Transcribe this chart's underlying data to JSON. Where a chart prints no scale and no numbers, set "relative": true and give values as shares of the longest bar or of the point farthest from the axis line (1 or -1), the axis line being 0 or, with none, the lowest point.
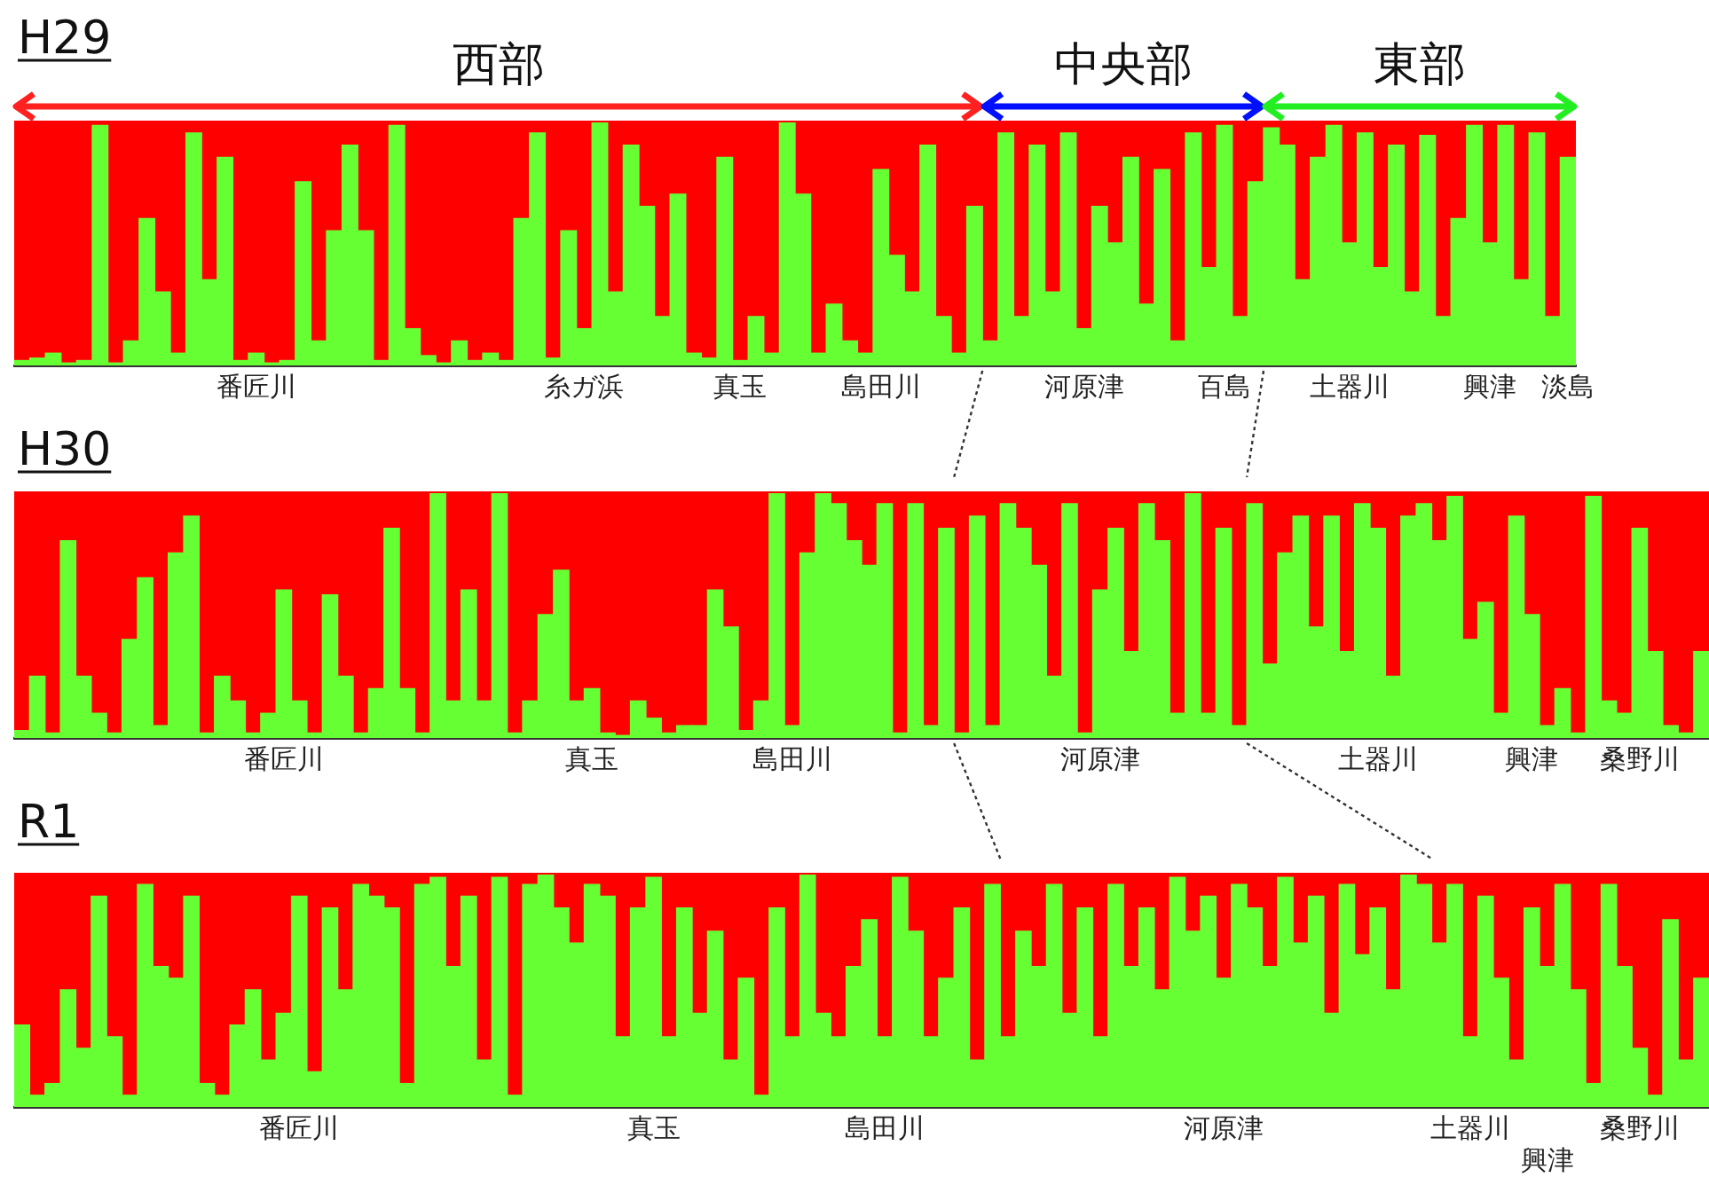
{
  "chart_data": [
    {
      "type": "bar",
      "title": "H29",
      "stacked": true,
      "relative": true,
      "legend": false,
      "grid": false,
      "annotations": [
        "西部",
        "中央部",
        "東部"
      ],
      "categories": [
        null,
        null,
        null,
        null,
        null,
        null,
        null,
        null,
        null,
        null,
        null,
        null,
        null,
        null,
        null,
        "番匠川",
        null,
        null,
        null,
        null,
        null,
        null,
        null,
        null,
        null,
        null,
        null,
        null,
        null,
        null,
        null,
        null,
        null,
        null,
        null,
        null,
        "糸ガ浜",
        null,
        null,
        null,
        null,
        null,
        null,
        null,
        null,
        null,
        "真玉",
        null,
        null,
        null,
        null,
        null,
        null,
        null,
        null,
        "島田川",
        null,
        null,
        null,
        null,
        null,
        null,
        null,
        null,
        null,
        null,
        null,
        null,
        "河原津",
        null,
        null,
        null,
        null,
        null,
        null,
        null,
        null,
        "百島",
        null,
        null,
        null,
        null,
        null,
        null,
        null,
        "土器川",
        null,
        null,
        null,
        null,
        null,
        null,
        null,
        null,
        "興津",
        null,
        null,
        null,
        null,
        "淡島"
      ],
      "series": [
        {
          "color": "#66ff33",
          "values": [
            0.02,
            0.03,
            0.05,
            0.01,
            0.02,
            0.98,
            0.01,
            0.1,
            0.6,
            0.3,
            0.05,
            0.95,
            0.35,
            0.85,
            0.02,
            0.05,
            0.01,
            0.02,
            0.75,
            0.1,
            0.55,
            0.9,
            0.55,
            0.02,
            0.98,
            0.15,
            0.04,
            0.01,
            0.1,
            0.02,
            0.05,
            0.02,
            0.6,
            0.95,
            0.03,
            0.55,
            0.15,
            0.99,
            0.3,
            0.9,
            0.65,
            0.2,
            0.7,
            0.05,
            0.03,
            0.85,
            0.02,
            0.2,
            0.05,
            0.99,
            0.7,
            0.05,
            0.25,
            0.1,
            0.05,
            0.8,
            0.45,
            0.3,
            0.9,
            0.2,
            0.05,
            0.65,
            0.1,
            0.95,
            0.2,
            0.9,
            0.3,
            0.95,
            0.15,
            0.65,
            0.5,
            0.85,
            0.25,
            0.8,
            0.1,
            0.95,
            0.4,
            0.98,
            0.2,
            0.75,
            0.97,
            0.9,
            0.35,
            0.85,
            0.98,
            0.5,
            0.95,
            0.4,
            0.9,
            0.3,
            0.94,
            0.2,
            0.6,
            0.98,
            0.5,
            0.98,
            0.35,
            0.95,
            0.2,
            0.85
          ]
        },
        {
          "color": "#ff0000",
          "values": [
            0.98,
            0.97,
            0.95,
            0.99,
            0.98,
            0.02,
            0.99,
            0.9,
            0.4,
            0.7,
            0.95,
            0.05,
            0.65,
            0.15,
            0.98,
            0.95,
            0.99,
            0.98,
            0.25,
            0.9,
            0.45,
            0.1,
            0.45,
            0.98,
            0.02,
            0.85,
            0.96,
            0.99,
            0.9,
            0.98,
            0.95,
            0.98,
            0.4,
            0.05,
            0.97,
            0.45,
            0.85,
            0.01,
            0.7,
            0.1,
            0.35,
            0.8,
            0.3,
            0.95,
            0.97,
            0.15,
            0.98,
            0.8,
            0.95,
            0.01,
            0.3,
            0.95,
            0.75,
            0.9,
            0.95,
            0.2,
            0.55,
            0.7,
            0.1,
            0.8,
            0.95,
            0.35,
            0.9,
            0.05,
            0.8,
            0.1,
            0.7,
            0.05,
            0.85,
            0.35,
            0.5,
            0.15,
            0.75,
            0.2,
            0.9,
            0.05,
            0.6,
            0.02,
            0.8,
            0.25,
            0.03,
            0.1,
            0.65,
            0.15,
            0.02,
            0.5,
            0.05,
            0.6,
            0.1,
            0.7,
            0.06,
            0.8,
            0.4,
            0.02,
            0.5,
            0.02,
            0.65,
            0.05,
            0.8,
            0.15
          ]
        }
      ]
    },
    {
      "type": "bar",
      "title": "H30",
      "stacked": true,
      "relative": true,
      "legend": false,
      "grid": false,
      "categories": [
        null,
        null,
        null,
        null,
        null,
        null,
        null,
        null,
        null,
        null,
        null,
        null,
        null,
        null,
        null,
        null,
        null,
        "番匠川",
        null,
        null,
        null,
        null,
        null,
        null,
        null,
        null,
        null,
        null,
        null,
        null,
        null,
        null,
        null,
        null,
        null,
        null,
        null,
        "真玉",
        null,
        null,
        null,
        null,
        null,
        null,
        null,
        null,
        null,
        null,
        null,
        null,
        "島田川",
        null,
        null,
        null,
        null,
        null,
        null,
        null,
        null,
        null,
        null,
        null,
        null,
        null,
        null,
        null,
        null,
        null,
        null,
        null,
        "河原津",
        null,
        null,
        null,
        null,
        null,
        null,
        null,
        null,
        null,
        null,
        null,
        null,
        null,
        null,
        null,
        null,
        null,
        "土器川",
        null,
        null,
        null,
        null,
        null,
        null,
        null,
        null,
        null,
        "興津",
        null,
        null,
        null,
        null,
        null,
        null,
        "桑野川",
        null,
        null,
        null,
        null
      ],
      "series": [
        {
          "color": "#66ff33",
          "values": [
            0.03,
            0.25,
            0.02,
            0.8,
            0.25,
            0.1,
            0.02,
            0.4,
            0.65,
            0.05,
            0.75,
            0.9,
            0.02,
            0.25,
            0.15,
            0.02,
            0.1,
            0.6,
            0.15,
            0.02,
            0.58,
            0.25,
            0.02,
            0.2,
            0.85,
            0.2,
            0.02,
            0.99,
            0.15,
            0.6,
            0.15,
            0.99,
            0.02,
            0.15,
            0.5,
            0.68,
            0.15,
            0.2,
            0.02,
            0.01,
            0.15,
            0.08,
            0.02,
            0.05,
            0.05,
            0.6,
            0.45,
            0.03,
            0.15,
            0.99,
            0.05,
            0.75,
            0.99,
            0.95,
            0.8,
            0.7,
            0.95,
            0.02,
            0.95,
            0.05,
            0.85,
            0.02,
            0.9,
            0.05,
            0.95,
            0.85,
            0.7,
            0.25,
            0.95,
            0.02,
            0.6,
            0.85,
            0.35,
            0.95,
            0.8,
            0.1,
            0.99,
            0.1,
            0.85,
            0.05,
            0.95,
            0.3,
            0.75,
            0.9,
            0.45,
            0.9,
            0.35,
            0.95,
            0.85,
            0.25,
            0.9,
            0.95,
            0.8,
            0.98,
            0.4,
            0.55,
            0.1,
            0.9,
            0.5,
            0.05,
            0.2,
            0.02,
            0.98,
            0.15,
            0.1,
            0.85,
            0.35,
            0.05,
            0.02,
            0.35
          ]
        },
        {
          "color": "#ff0000",
          "values": [
            0.97,
            0.75,
            0.98,
            0.2,
            0.75,
            0.9,
            0.98,
            0.6,
            0.35,
            0.95,
            0.25,
            0.1,
            0.98,
            0.75,
            0.85,
            0.98,
            0.9,
            0.4,
            0.85,
            0.98,
            0.42,
            0.75,
            0.98,
            0.8,
            0.15,
            0.8,
            0.98,
            0.01,
            0.85,
            0.4,
            0.85,
            0.01,
            0.98,
            0.85,
            0.5,
            0.32,
            0.85,
            0.8,
            0.98,
            0.99,
            0.85,
            0.92,
            0.98,
            0.95,
            0.95,
            0.4,
            0.55,
            0.97,
            0.85,
            0.01,
            0.95,
            0.25,
            0.01,
            0.05,
            0.2,
            0.3,
            0.05,
            0.98,
            0.05,
            0.95,
            0.15,
            0.98,
            0.1,
            0.95,
            0.05,
            0.15,
            0.3,
            0.75,
            0.05,
            0.98,
            0.4,
            0.15,
            0.65,
            0.05,
            0.2,
            0.9,
            0.01,
            0.9,
            0.15,
            0.95,
            0.05,
            0.7,
            0.25,
            0.1,
            0.55,
            0.1,
            0.65,
            0.05,
            0.15,
            0.75,
            0.1,
            0.05,
            0.2,
            0.02,
            0.6,
            0.45,
            0.9,
            0.1,
            0.5,
            0.95,
            0.8,
            0.98,
            0.02,
            0.85,
            0.9,
            0.15,
            0.65,
            0.95,
            0.98,
            0.65
          ]
        }
      ]
    },
    {
      "type": "bar",
      "title": "R1",
      "stacked": true,
      "relative": true,
      "legend": false,
      "grid": false,
      "categories": [
        null,
        null,
        null,
        null,
        null,
        null,
        null,
        null,
        null,
        null,
        null,
        null,
        null,
        null,
        null,
        null,
        null,
        null,
        "番匠川",
        null,
        null,
        null,
        null,
        null,
        null,
        null,
        null,
        null,
        null,
        null,
        null,
        null,
        null,
        null,
        null,
        null,
        null,
        null,
        null,
        null,
        null,
        "真玉",
        null,
        null,
        null,
        null,
        null,
        null,
        null,
        null,
        null,
        null,
        null,
        null,
        null,
        null,
        "島田川",
        null,
        null,
        null,
        null,
        null,
        null,
        null,
        null,
        null,
        null,
        null,
        null,
        null,
        null,
        null,
        null,
        null,
        null,
        null,
        null,
        null,
        "河原津",
        null,
        null,
        null,
        null,
        null,
        null,
        null,
        null,
        null,
        null,
        null,
        null,
        null,
        null,
        null,
        "土器川",
        null,
        null,
        null,
        null,
        "興津",
        null,
        null,
        null,
        null,
        null,
        "桑野川",
        null,
        null,
        null,
        null
      ],
      "series": [
        {
          "color": "#66ff33",
          "values": [
            0.35,
            0.05,
            0.1,
            0.5,
            0.25,
            0.9,
            0.3,
            0.05,
            0.95,
            0.6,
            0.55,
            0.9,
            0.1,
            0.05,
            0.35,
            0.5,
            0.2,
            0.4,
            0.9,
            0.15,
            0.85,
            0.5,
            0.95,
            0.9,
            0.85,
            0.1,
            0.95,
            0.98,
            0.6,
            0.9,
            0.2,
            0.98,
            0.05,
            0.95,
            0.99,
            0.85,
            0.7,
            0.95,
            0.9,
            0.3,
            0.85,
            0.98,
            0.3,
            0.85,
            0.4,
            0.75,
            0.2,
            0.55,
            0.05,
            0.85,
            0.3,
            0.99,
            0.4,
            0.3,
            0.6,
            0.8,
            0.3,
            0.98,
            0.75,
            0.3,
            0.55,
            0.85,
            0.2,
            0.95,
            0.3,
            0.75,
            0.6,
            0.95,
            0.4,
            0.85,
            0.3,
            0.95,
            0.6,
            0.85,
            0.5,
            0.98,
            0.75,
            0.9,
            0.55,
            0.95,
            0.85,
            0.6,
            0.98,
            0.7,
            0.9,
            0.4,
            0.95,
            0.65,
            0.85,
            0.5,
            0.99,
            0.95,
            0.7,
            0.95,
            0.3,
            0.9,
            0.55,
            0.2,
            0.85,
            0.6,
            0.95,
            0.5,
            0.1,
            0.95,
            0.6,
            0.25,
            0.05,
            0.8,
            0.2,
            0.55
          ]
        },
        {
          "color": "#ff0000",
          "values": [
            0.65,
            0.95,
            0.9,
            0.5,
            0.75,
            0.1,
            0.7,
            0.95,
            0.05,
            0.4,
            0.45,
            0.1,
            0.9,
            0.95,
            0.65,
            0.5,
            0.8,
            0.6,
            0.1,
            0.85,
            0.15,
            0.5,
            0.05,
            0.1,
            0.15,
            0.9,
            0.05,
            0.02,
            0.4,
            0.1,
            0.8,
            0.02,
            0.95,
            0.05,
            0.01,
            0.15,
            0.3,
            0.05,
            0.1,
            0.7,
            0.15,
            0.02,
            0.7,
            0.15,
            0.6,
            0.25,
            0.8,
            0.45,
            0.95,
            0.15,
            0.7,
            0.01,
            0.6,
            0.7,
            0.4,
            0.2,
            0.7,
            0.02,
            0.25,
            0.7,
            0.45,
            0.15,
            0.8,
            0.05,
            0.7,
            0.25,
            0.4,
            0.05,
            0.6,
            0.15,
            0.7,
            0.05,
            0.4,
            0.15,
            0.5,
            0.02,
            0.25,
            0.1,
            0.45,
            0.05,
            0.15,
            0.4,
            0.02,
            0.3,
            0.1,
            0.6,
            0.05,
            0.35,
            0.15,
            0.5,
            0.01,
            0.05,
            0.3,
            0.05,
            0.7,
            0.1,
            0.45,
            0.8,
            0.15,
            0.4,
            0.05,
            0.5,
            0.9,
            0.05,
            0.4,
            0.75,
            0.95,
            0.2,
            0.8,
            0.45
          ]
        }
      ]
    }
  ]
}
